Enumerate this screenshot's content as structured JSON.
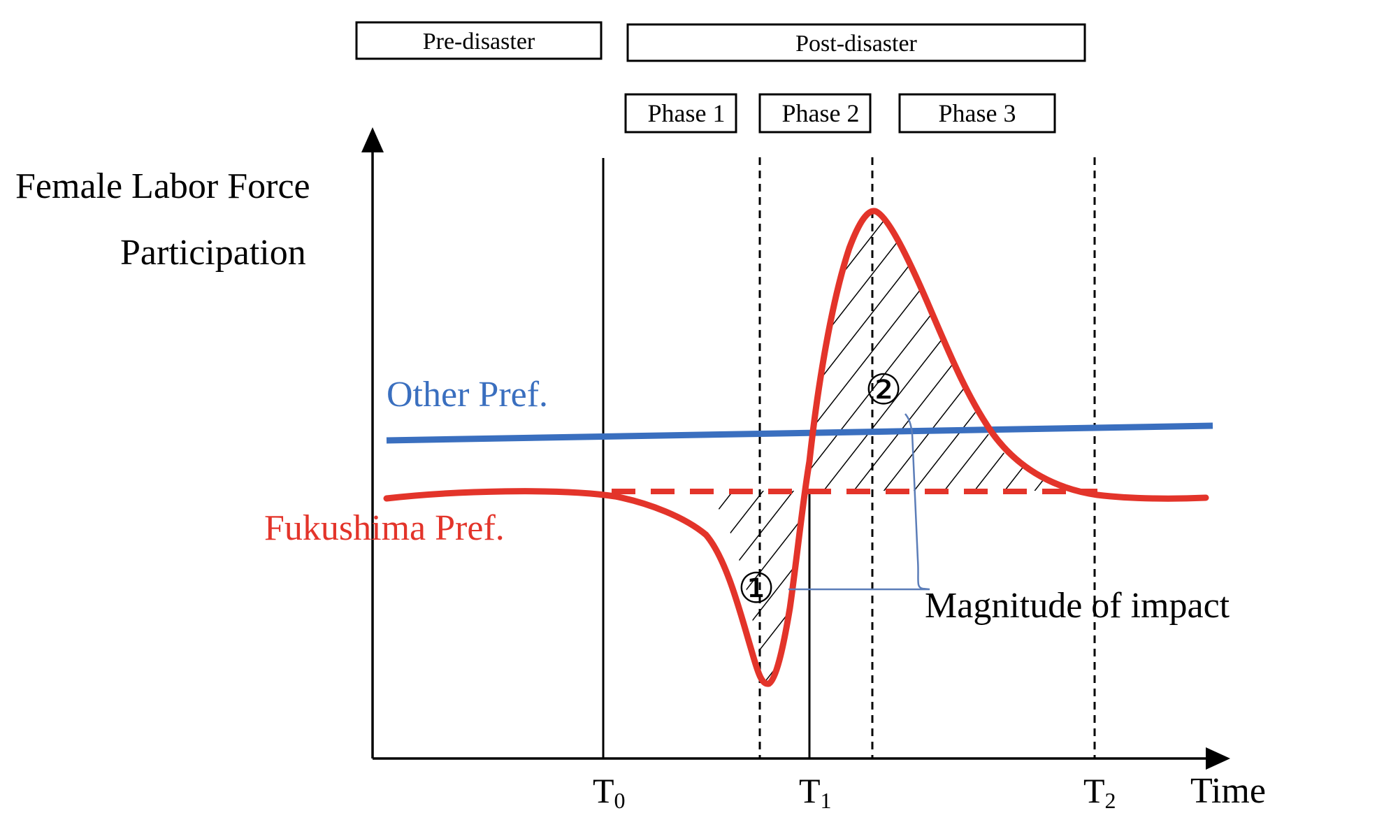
{
  "periods": {
    "pre": "Pre-disaster",
    "post": "Post-disaster"
  },
  "phases": [
    "Phase 1",
    "Phase 2",
    "Phase 3"
  ],
  "axis": {
    "y_label_line1": "Female Labor Force",
    "y_label_line2": "Participation",
    "x_label": "Time",
    "ticks": [
      {
        "base": "T",
        "sub": "0"
      },
      {
        "base": "T",
        "sub": "1"
      },
      {
        "base": "T",
        "sub": "2"
      }
    ]
  },
  "series": {
    "other": {
      "label": "Other Pref.",
      "color": "#3a6fbf"
    },
    "fukushima": {
      "label": "Fukushima Pref.",
      "color": "#e3342a"
    }
  },
  "annotations": {
    "area1": "①",
    "area2": "②",
    "magnitude": "Magnitude of impact"
  },
  "colors": {
    "axis": "#000000",
    "bracket": "#5b7db8"
  }
}
